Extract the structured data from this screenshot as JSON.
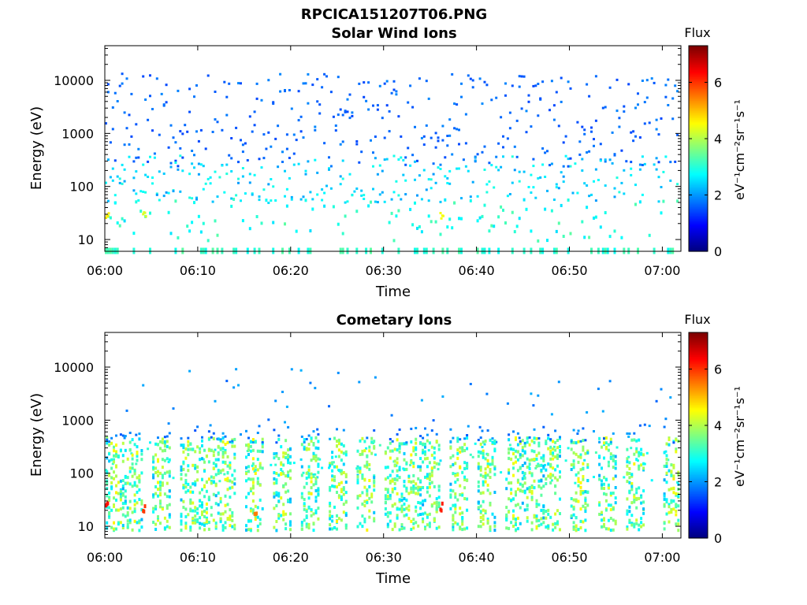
{
  "figure": {
    "title": "RPCICA151207T06.PNG"
  },
  "colors": {
    "colormap": [
      "#00007f",
      "#0000ff",
      "#007fff",
      "#00ffff",
      "#7fff7f",
      "#ffff00",
      "#ff7f00",
      "#ff0000",
      "#7f0000"
    ],
    "axes_edge": "#000000",
    "background": "#ffffff"
  },
  "chart_data": [
    {
      "type": "heatmap",
      "title": "Solar Wind Ions",
      "xlabel": "Time",
      "ylabel": "Energy (eV)",
      "yscale": "log",
      "x_ticks": [
        "06:00",
        "06:10",
        "06:20",
        "06:30",
        "06:40",
        "06:50",
        "07:00"
      ],
      "y_ticks": [
        "10",
        "100",
        "1000",
        "10000"
      ],
      "x_range": [
        "06:00",
        "07:02"
      ],
      "y_range": [
        6,
        45000
      ],
      "colorbar": {
        "title": "Flux",
        "label": "eV⁻¹cm⁻²sr⁻¹s⁻¹",
        "ticks": [
          "0",
          "2",
          "4",
          "6"
        ],
        "range": [
          0,
          7.3
        ]
      },
      "description_of_data": "Sparse speckle of flux values; high energies (500-30000 eV) mostly ~1.5-2, low energies (10-300 eV) ~2.5-3.5, with a few hot spots up to ~4.5 near 06:00 and 06:35.",
      "hotspots": [
        {
          "time": "06:00",
          "energy": 30,
          "flux": 4.7
        },
        {
          "time": "06:04",
          "energy": 30,
          "flux": 4.3
        },
        {
          "time": "06:36",
          "energy": 30,
          "flux": 4.5
        }
      ]
    },
    {
      "type": "heatmap",
      "title": "Cometary Ions",
      "xlabel": "Time",
      "ylabel": "Energy (eV)",
      "yscale": "log",
      "x_ticks": [
        "06:00",
        "06:10",
        "06:20",
        "06:30",
        "06:40",
        "06:50",
        "07:00"
      ],
      "y_ticks": [
        "10",
        "100",
        "1000",
        "10000"
      ],
      "x_range": [
        "06:00",
        "07:02"
      ],
      "y_range": [
        6,
        45000
      ],
      "colorbar": {
        "title": "Flux",
        "label": "eV⁻¹cm⁻²sr⁻¹s⁻¹",
        "ticks": [
          "0",
          "2",
          "4",
          "6"
        ],
        "range": [
          0,
          7.3
        ]
      },
      "description_of_data": "Periodic vertical bursts (~every 2-3 min) of flux 3-5.5 between 10 and 500 eV, with sparse high-energy streaks up to 10000 eV.",
      "burst_times": [
        "06:01",
        "06:03",
        "06:06",
        "06:09",
        "06:11",
        "06:13",
        "06:16",
        "06:19",
        "06:22",
        "06:25",
        "06:28",
        "06:31",
        "06:33",
        "06:35",
        "06:38",
        "06:41",
        "06:44",
        "06:46",
        "06:48",
        "06:51",
        "06:54",
        "06:57",
        "07:01"
      ],
      "hotspots": [
        {
          "time": "06:00",
          "energy": 25,
          "flux": 6.3
        },
        {
          "time": "06:04",
          "energy": 25,
          "flux": 6.0
        },
        {
          "time": "06:16",
          "energy": 18,
          "flux": 5.5
        },
        {
          "time": "06:36",
          "energy": 25,
          "flux": 6.2
        }
      ]
    }
  ]
}
